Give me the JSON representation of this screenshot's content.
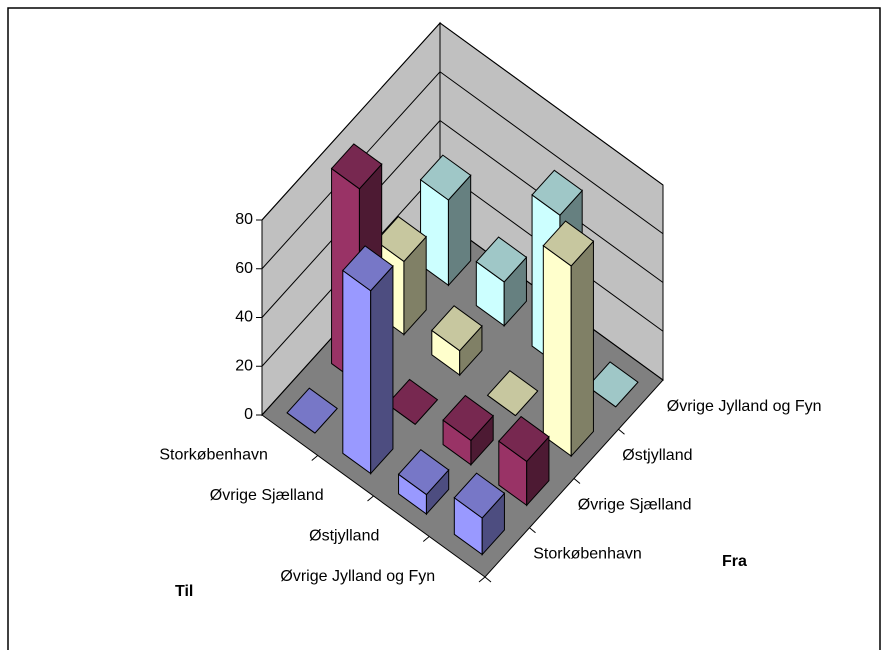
{
  "chart_data": {
    "type": "bar3d",
    "categories": [
      "Storkøbenhavn",
      "Øvrige Sjælland",
      "Østjylland",
      "Øvrige Jylland og Fyn"
    ],
    "category_axis_label": "Til",
    "series_axis_label": "Fra",
    "series": [
      {
        "name": "Storkøbenhavn",
        "color": "#9999FF",
        "values": [
          0,
          75,
          8,
          15
        ]
      },
      {
        "name": "Øvrige Sjælland",
        "color": "#993366",
        "values": [
          80,
          0,
          10,
          18
        ]
      },
      {
        "name": "Østjylland",
        "color": "#FFFFCC",
        "values": [
          30,
          10,
          0,
          78
        ]
      },
      {
        "name": "Øvrige Jylland og Fyn",
        "color": "#CCFFFF",
        "values": [
          35,
          18,
          62,
          0
        ]
      }
    ],
    "ylim": [
      0,
      80
    ],
    "yticks": [
      0,
      20,
      40,
      60,
      80
    ],
    "grid": true
  }
}
